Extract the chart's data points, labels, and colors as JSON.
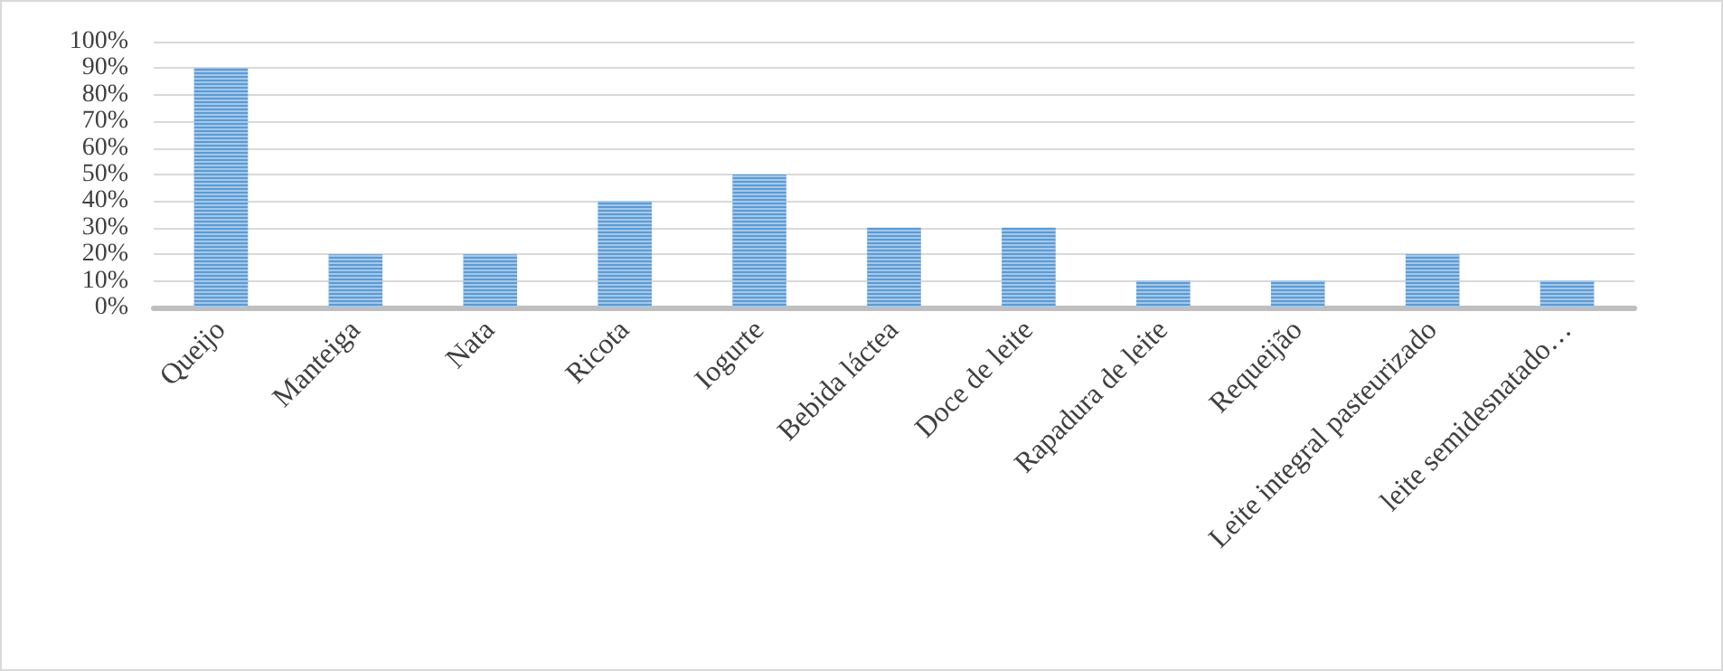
{
  "chart_data": {
    "type": "bar",
    "categories": [
      "Queijo",
      "Manteiga",
      "Nata",
      "Ricota",
      "Iogurte",
      "Bebida láctea",
      "Doce de leite",
      "Rapadura de leite",
      "Requeijão",
      "Leite integral pasteurizado",
      "leite semidesnatado…"
    ],
    "values": [
      90,
      20,
      20,
      40,
      50,
      30,
      30,
      10,
      10,
      20,
      10
    ],
    "color": "#5b9bd5",
    "ylim": [
      0,
      100
    ],
    "yticks": [
      {
        "value": 0,
        "label": "0%"
      },
      {
        "value": 10,
        "label": "10%"
      },
      {
        "value": 20,
        "label": "20%"
      },
      {
        "value": 30,
        "label": "30%"
      },
      {
        "value": 40,
        "label": "40%"
      },
      {
        "value": 50,
        "label": "50%"
      },
      {
        "value": 60,
        "label": "60%"
      },
      {
        "value": 70,
        "label": "70%"
      },
      {
        "value": 80,
        "label": "80%"
      },
      {
        "value": 90,
        "label": "90%"
      },
      {
        "value": 100,
        "label": "100%"
      }
    ],
    "grid": "y"
  }
}
